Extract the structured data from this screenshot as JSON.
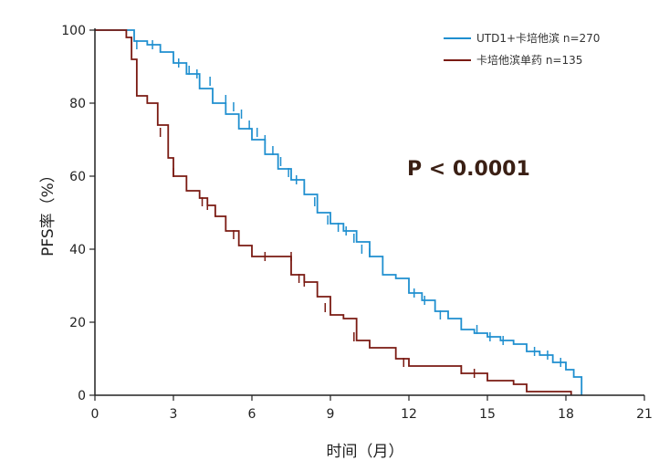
{
  "chart_data": {
    "type": "line",
    "title": "",
    "xlabel": "时间（月）",
    "ylabel": "PFS率（%）",
    "xlim": [
      0,
      21
    ],
    "ylim": [
      0,
      100
    ],
    "x_ticks": [
      0,
      3,
      6,
      9,
      12,
      15,
      18,
      21
    ],
    "y_ticks": [
      0,
      20,
      40,
      60,
      80,
      100
    ],
    "grid": false,
    "legend_position": "top-right",
    "annotation": "P < 0.0001",
    "colors": {
      "series_1": "#1f8fcf",
      "series_2": "#7a1a12",
      "axis": "#222222"
    },
    "series": [
      {
        "name": "UTD1+卡培他滨 n=270",
        "color": "#1f8fcf",
        "x": [
          0,
          1.0,
          1.5,
          2.0,
          2.5,
          3.0,
          3.5,
          4.0,
          4.5,
          5.0,
          5.5,
          6.0,
          6.5,
          7.0,
          7.5,
          8.0,
          8.5,
          9.0,
          9.5,
          10.0,
          10.5,
          11.0,
          11.5,
          12.0,
          12.5,
          13.0,
          13.5,
          14.0,
          14.5,
          15.0,
          15.5,
          16.0,
          16.5,
          17.0,
          17.5,
          18.0,
          18.3,
          18.6
        ],
        "y": [
          100,
          100,
          97,
          96,
          94,
          91,
          88,
          84,
          80,
          77,
          73,
          70,
          66,
          62,
          59,
          55,
          50,
          47,
          45,
          42,
          38,
          33,
          32,
          28,
          26,
          23,
          21,
          18,
          17,
          16,
          15,
          14,
          12,
          11,
          9,
          7,
          5,
          0
        ],
        "censor_x": [
          1.6,
          2.2,
          3.2,
          3.6,
          3.9,
          4.4,
          5.0,
          5.3,
          5.6,
          5.9,
          6.2,
          6.5,
          6.8,
          7.1,
          7.4,
          7.7,
          8.0,
          8.4,
          8.9,
          9.3,
          9.6,
          9.9,
          10.2,
          10.5,
          12.2,
          12.6,
          13.2,
          14.6,
          15.1,
          15.6,
          16.8,
          17.3,
          17.8
        ],
        "censor_y": [
          96,
          96,
          91,
          89,
          88,
          86,
          81,
          79,
          77,
          74,
          72,
          70,
          67,
          64,
          61,
          59,
          57,
          53,
          48,
          46,
          45,
          43,
          40,
          39,
          28,
          26,
          22,
          18,
          16,
          15,
          12,
          11,
          9
        ]
      },
      {
        "name": "卡培他滨单药 n=135",
        "color": "#7a1a12",
        "x": [
          0,
          1.2,
          1.4,
          1.6,
          2.0,
          2.4,
          2.8,
          3.0,
          3.5,
          4.0,
          4.3,
          4.6,
          5.0,
          5.5,
          6.0,
          7.0,
          7.5,
          8.0,
          8.5,
          9.0,
          9.5,
          10.0,
          10.5,
          11.0,
          11.5,
          12.0,
          13.0,
          14.0,
          15.0,
          16.0,
          16.5,
          17.5,
          18.0,
          18.2
        ],
        "y": [
          100,
          98,
          92,
          82,
          80,
          74,
          65,
          60,
          56,
          54,
          52,
          49,
          45,
          41,
          38,
          38,
          33,
          31,
          27,
          22,
          21,
          15,
          13,
          13,
          10,
          8,
          8,
          6,
          4,
          3,
          1,
          1,
          1,
          0
        ],
        "censor_x": [
          2.5,
          3.0,
          4.1,
          4.3,
          5.3,
          6.5,
          7.5,
          7.8,
          8.0,
          8.8,
          9.9,
          11.8,
          14.0,
          14.5
        ],
        "censor_y": [
          72,
          61,
          53,
          52,
          44,
          38,
          38,
          32,
          31,
          24,
          16,
          9,
          7,
          6
        ]
      }
    ]
  }
}
